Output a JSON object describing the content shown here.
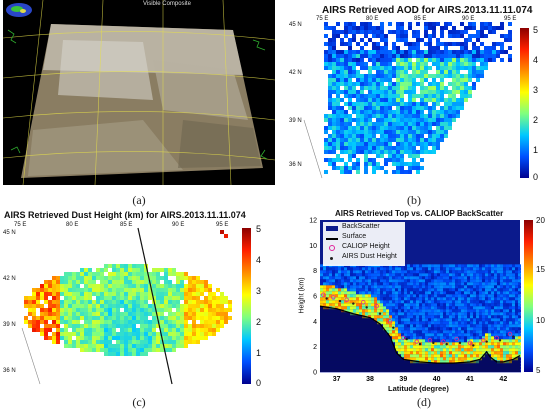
{
  "captions": [
    "(a)",
    "(b)",
    "(c)",
    "(d)"
  ],
  "panel_a": {
    "title_text": "Visible Composite",
    "colors": {
      "background": "#000000",
      "land": "#8a7d62",
      "grid": "#e6e04a",
      "coast": "#2fae2f"
    }
  },
  "panel_b": {
    "title": "AIRS Retrieved AOD for AIRS.2013.11.11.074",
    "lon_ticks": [
      "75 E",
      "80 E",
      "85 E",
      "90 E",
      "95 E"
    ],
    "lat_ticks": [
      "45 N",
      "42 N",
      "39 N",
      "36 N"
    ],
    "colorbar_ticks": [
      "5",
      "4",
      "3",
      "2",
      "1",
      "0"
    ]
  },
  "panel_c": {
    "title": "AIRS Retrieved Dust Height (km) for AIRS.2013.11.11.074",
    "lon_ticks": [
      "75 E",
      "80 E",
      "85 E",
      "90 E",
      "95 E"
    ],
    "lat_ticks": [
      "45 N",
      "42 N",
      "39 N",
      "36 N"
    ],
    "colorbar_ticks": [
      "5",
      "4",
      "3",
      "2",
      "1",
      "0"
    ]
  },
  "chart_data": [
    {
      "type": "heatmap",
      "title": "AIRS Retrieved AOD for AIRS.2013.11.11.074",
      "colorbar_range": [
        0,
        5
      ],
      "x_ticks": [
        "75 E",
        "80 E",
        "85 E",
        "90 E",
        "95 E"
      ],
      "y_ticks": [
        "45 N",
        "42 N",
        "39 N",
        "36 N"
      ]
    },
    {
      "type": "heatmap",
      "title": "AIRS Retrieved Dust Height (km) for AIRS.2013.11.11.074",
      "colorbar_range": [
        0,
        5
      ],
      "x_ticks": [
        "75 E",
        "80 E",
        "85 E",
        "90 E",
        "95 E"
      ],
      "y_ticks": [
        "45 N",
        "42 N",
        "39 N",
        "36 N"
      ]
    },
    {
      "type": "heatmap",
      "title": "AIRS Retrieved Top vs. CALIOP BackScatter",
      "xlabel": "Latitude (degree)",
      "ylabel": "Height (km)",
      "xlim": [
        36.5,
        42.5
      ],
      "ylim": [
        0,
        12
      ],
      "x_ticks": [
        37,
        38,
        39,
        40,
        41,
        42
      ],
      "y_ticks": [
        0,
        2,
        4,
        6,
        8,
        10,
        12
      ],
      "colorbar_range": [
        5,
        20
      ],
      "colorbar_ticks": [
        20,
        15,
        10,
        5
      ],
      "legend": [
        "BackScatter",
        "Surface",
        "CALIOP Height",
        "AIRS Dust Height"
      ],
      "legend_position": "top-left",
      "series": [
        {
          "name": "Surface",
          "x": [
            36.5,
            37.0,
            37.5,
            38.0,
            38.3,
            38.6,
            38.8,
            39.0,
            39.5,
            40.0,
            40.5,
            41.0,
            41.3,
            41.5,
            41.6,
            41.8,
            42.0,
            42.3,
            42.5
          ],
          "y": [
            5.2,
            5.0,
            4.6,
            4.3,
            3.8,
            2.8,
            1.5,
            1.0,
            0.8,
            0.7,
            0.7,
            0.8,
            1.0,
            1.6,
            1.2,
            0.8,
            0.8,
            1.0,
            1.3
          ]
        },
        {
          "name": "CALIOP Height",
          "x": [
            36.6,
            36.9,
            37.3,
            37.8,
            38.2,
            38.6,
            39.0,
            39.4,
            39.8,
            40.2,
            40.6,
            41.0,
            41.4,
            41.8,
            42.2
          ],
          "y": [
            6.1,
            5.9,
            5.7,
            5.5,
            5.2,
            4.0,
            2.7,
            2.4,
            2.5,
            2.4,
            2.6,
            2.3,
            2.5,
            2.7,
            3.0
          ]
        },
        {
          "name": "AIRS Dust Height",
          "x": [
            36.7,
            37.1,
            37.5,
            37.9,
            38.3,
            38.7,
            39.1,
            39.5,
            39.9,
            40.3,
            40.7,
            41.1,
            41.5,
            41.9,
            42.3
          ],
          "y": [
            5.8,
            5.6,
            5.4,
            5.1,
            4.6,
            3.5,
            2.6,
            2.2,
            2.3,
            2.2,
            2.3,
            2.1,
            2.4,
            2.5,
            2.8
          ]
        }
      ]
    }
  ]
}
